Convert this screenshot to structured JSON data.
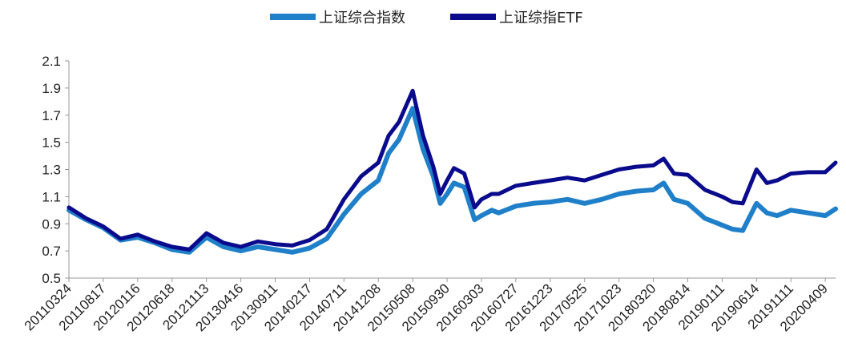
{
  "chart_data": {
    "type": "line",
    "title": "",
    "xlabel": "",
    "ylabel": "",
    "ylim": [
      0.5,
      2.1
    ],
    "yticks": [
      "0.5",
      "0.7",
      "0.9",
      "1.1",
      "1.3",
      "1.5",
      "1.7",
      "1.9",
      "2.1"
    ],
    "xticks": [
      "20110324",
      "20110817",
      "20120116",
      "20120618",
      "20121113",
      "20130416",
      "20130911",
      "20140217",
      "20140711",
      "20141208",
      "20150508",
      "20150930",
      "20160303",
      "20160727",
      "20161223",
      "20170525",
      "20171023",
      "20180320",
      "20180814",
      "20190111",
      "20190614",
      "20191111",
      "20200409"
    ],
    "legend_position": "top-center",
    "grid": false,
    "series": [
      {
        "name": "上证综合指数",
        "color": "#1f7fc9",
        "x": [
          0,
          0.5,
          1,
          1.5,
          2,
          2.5,
          3,
          3.5,
          4,
          4.5,
          5,
          5.5,
          6,
          6.5,
          7,
          7.5,
          8,
          8.5,
          9,
          9.3,
          9.6,
          10,
          10.3,
          10.6,
          10.8,
          11,
          11.2,
          11.5,
          11.8,
          12,
          12.3,
          12.5,
          13,
          13.5,
          14,
          14.5,
          15,
          15.5,
          16,
          16.5,
          17,
          17.3,
          17.6,
          18,
          18.5,
          19,
          19.3,
          19.6,
          20,
          20.3,
          20.6,
          21,
          21.5,
          22,
          22.3
        ],
        "values": [
          1.0,
          0.93,
          0.87,
          0.78,
          0.8,
          0.76,
          0.71,
          0.69,
          0.8,
          0.73,
          0.7,
          0.73,
          0.71,
          0.69,
          0.72,
          0.79,
          0.97,
          1.12,
          1.22,
          1.42,
          1.52,
          1.75,
          1.45,
          1.25,
          1.05,
          1.12,
          1.2,
          1.17,
          0.93,
          0.96,
          1.0,
          0.98,
          1.03,
          1.05,
          1.06,
          1.08,
          1.05,
          1.08,
          1.12,
          1.14,
          1.15,
          1.2,
          1.08,
          1.05,
          0.94,
          0.89,
          0.86,
          0.85,
          1.05,
          0.98,
          0.96,
          1.0,
          0.98,
          0.96,
          1.01
        ]
      },
      {
        "name": "上证综指ETF",
        "color": "#0a0a8c",
        "x": [
          0,
          0.5,
          1,
          1.5,
          2,
          2.5,
          3,
          3.5,
          4,
          4.5,
          5,
          5.5,
          6,
          6.5,
          7,
          7.5,
          8,
          8.5,
          9,
          9.3,
          9.6,
          10,
          10.3,
          10.6,
          10.8,
          11,
          11.2,
          11.5,
          11.8,
          12,
          12.3,
          12.5,
          13,
          13.5,
          14,
          14.5,
          15,
          15.5,
          16,
          16.5,
          17,
          17.3,
          17.6,
          18,
          18.5,
          19,
          19.3,
          19.6,
          20,
          20.3,
          20.6,
          21,
          21.5,
          22,
          22.3
        ],
        "values": [
          1.02,
          0.94,
          0.88,
          0.79,
          0.82,
          0.77,
          0.73,
          0.71,
          0.83,
          0.76,
          0.73,
          0.77,
          0.75,
          0.74,
          0.78,
          0.86,
          1.08,
          1.25,
          1.35,
          1.55,
          1.65,
          1.88,
          1.55,
          1.32,
          1.12,
          1.22,
          1.31,
          1.27,
          1.02,
          1.08,
          1.12,
          1.12,
          1.18,
          1.2,
          1.22,
          1.24,
          1.22,
          1.26,
          1.3,
          1.32,
          1.33,
          1.38,
          1.27,
          1.26,
          1.15,
          1.1,
          1.06,
          1.05,
          1.3,
          1.2,
          1.22,
          1.27,
          1.28,
          1.28,
          1.35
        ]
      }
    ]
  }
}
